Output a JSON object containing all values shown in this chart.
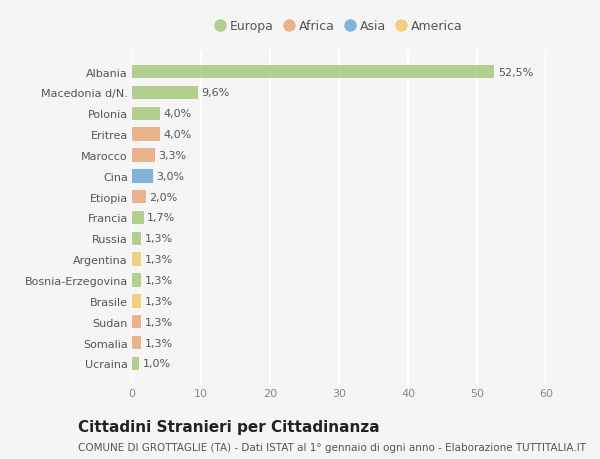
{
  "categories": [
    "Albania",
    "Macedonia d/N.",
    "Polonia",
    "Eritrea",
    "Marocco",
    "Cina",
    "Etiopia",
    "Francia",
    "Russia",
    "Argentina",
    "Bosnia-Erzegovina",
    "Brasile",
    "Sudan",
    "Somalia",
    "Ucraina"
  ],
  "values": [
    52.5,
    9.6,
    4.0,
    4.0,
    3.3,
    3.0,
    2.0,
    1.7,
    1.3,
    1.3,
    1.3,
    1.3,
    1.3,
    1.3,
    1.0
  ],
  "labels": [
    "52,5%",
    "9,6%",
    "4,0%",
    "4,0%",
    "3,3%",
    "3,0%",
    "2,0%",
    "1,7%",
    "1,3%",
    "1,3%",
    "1,3%",
    "1,3%",
    "1,3%",
    "1,3%",
    "1,0%"
  ],
  "continents": [
    "Europa",
    "Europa",
    "Europa",
    "Africa",
    "Africa",
    "Asia",
    "Africa",
    "Europa",
    "Europa",
    "America",
    "Europa",
    "America",
    "Africa",
    "Africa",
    "Europa"
  ],
  "continent_colors": {
    "Europa": "#a8c97f",
    "Africa": "#e8a97a",
    "Asia": "#6fa8d4",
    "America": "#f0c96e"
  },
  "legend_order": [
    "Europa",
    "Africa",
    "Asia",
    "America"
  ],
  "title": "Cittadini Stranieri per Cittadinanza",
  "subtitle": "COMUNE DI GROTTAGLIE (TA) - Dati ISTAT al 1° gennaio di ogni anno - Elaborazione TUTTITALIA.IT",
  "xlim": [
    0,
    60
  ],
  "xticks": [
    0,
    10,
    20,
    30,
    40,
    50,
    60
  ],
  "background_color": "#f5f5f5",
  "bar_height": 0.65,
  "grid_color": "#ffffff",
  "label_fontsize": 8,
  "title_fontsize": 11,
  "subtitle_fontsize": 7.5,
  "tick_fontsize": 8,
  "legend_fontsize": 9
}
